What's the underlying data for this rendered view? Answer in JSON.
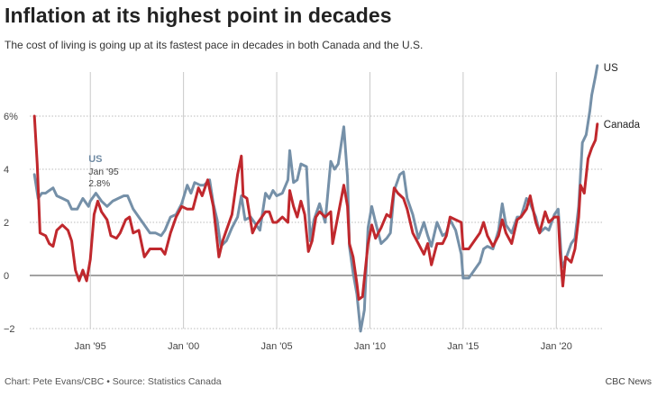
{
  "title": "Inflation at its highest point in decades",
  "subtitle": "The cost of living is going up at its fastest pace in decades in both Canada and the U.S.",
  "footer": {
    "source": "Chart: Pete Evans/CBC • Source: Statistics Canada",
    "brand": "CBC News"
  },
  "colors": {
    "us": "#7590a8",
    "canada": "#c0282d",
    "grid": "#bbbbbb",
    "zero_line": "#444444"
  },
  "annotation": {
    "series": "US",
    "date": "Jan '95",
    "value": "2.8%"
  },
  "chart_data": {
    "type": "line",
    "title": "Inflation at its highest point in decades",
    "subtitle": "The cost of living is going up at its fastest pace in decades in both Canada and the U.S.",
    "xlabel": "",
    "ylabel": "",
    "xlim": [
      1991.75,
      2022.5
    ],
    "ylim": [
      -2,
      8
    ],
    "grid": true,
    "legend": "end-of-line labels",
    "x_ticks": [
      {
        "x": 1995,
        "label": "Jan '95"
      },
      {
        "x": 2000,
        "label": "Jan '00"
      },
      {
        "x": 2005,
        "label": "Jan '05"
      },
      {
        "x": 2010,
        "label": "Jan '10"
      },
      {
        "x": 2015,
        "label": "Jan '15"
      },
      {
        "x": 2020,
        "label": "Jan '20"
      }
    ],
    "y_ticks": [
      {
        "y": 6,
        "label": "6%"
      },
      {
        "y": 4,
        "label": "4"
      },
      {
        "y": 2,
        "label": "2"
      },
      {
        "y": 0,
        "label": "0"
      },
      {
        "y": -2,
        "label": "−2"
      }
    ],
    "series": [
      {
        "name": "US",
        "color": "#7590a8",
        "points": [
          [
            1992.0,
            3.8
          ],
          [
            1992.2,
            2.9
          ],
          [
            1992.4,
            3.1
          ],
          [
            1992.6,
            3.1
          ],
          [
            1992.8,
            3.2
          ],
          [
            1993.0,
            3.3
          ],
          [
            1993.2,
            3.0
          ],
          [
            1993.5,
            2.9
          ],
          [
            1993.8,
            2.8
          ],
          [
            1994.0,
            2.5
          ],
          [
            1994.3,
            2.5
          ],
          [
            1994.6,
            2.9
          ],
          [
            1994.9,
            2.6
          ],
          [
            1995.0,
            2.8
          ],
          [
            1995.3,
            3.1
          ],
          [
            1995.6,
            2.8
          ],
          [
            1995.9,
            2.6
          ],
          [
            1996.2,
            2.8
          ],
          [
            1996.5,
            2.9
          ],
          [
            1996.8,
            3.0
          ],
          [
            1997.0,
            3.0
          ],
          [
            1997.3,
            2.5
          ],
          [
            1997.6,
            2.2
          ],
          [
            1997.9,
            1.9
          ],
          [
            1998.2,
            1.6
          ],
          [
            1998.5,
            1.6
          ],
          [
            1998.8,
            1.5
          ],
          [
            1999.0,
            1.7
          ],
          [
            1999.3,
            2.2
          ],
          [
            1999.6,
            2.3
          ],
          [
            1999.9,
            2.7
          ],
          [
            2000.2,
            3.4
          ],
          [
            2000.4,
            3.1
          ],
          [
            2000.6,
            3.5
          ],
          [
            2000.9,
            3.4
          ],
          [
            2001.1,
            3.4
          ],
          [
            2001.4,
            3.6
          ],
          [
            2001.6,
            2.7
          ],
          [
            2001.8,
            2.1
          ],
          [
            2002.0,
            1.1
          ],
          [
            2002.3,
            1.3
          ],
          [
            2002.6,
            1.8
          ],
          [
            2002.9,
            2.2
          ],
          [
            2003.1,
            3.0
          ],
          [
            2003.3,
            2.1
          ],
          [
            2003.6,
            2.2
          ],
          [
            2003.9,
            1.9
          ],
          [
            2004.1,
            1.7
          ],
          [
            2004.4,
            3.1
          ],
          [
            2004.6,
            2.9
          ],
          [
            2004.8,
            3.2
          ],
          [
            2005.0,
            3.0
          ],
          [
            2005.3,
            3.1
          ],
          [
            2005.6,
            3.6
          ],
          [
            2005.7,
            4.7
          ],
          [
            2005.9,
            3.5
          ],
          [
            2006.1,
            3.6
          ],
          [
            2006.3,
            4.2
          ],
          [
            2006.6,
            4.1
          ],
          [
            2006.8,
            1.3
          ],
          [
            2007.0,
            2.1
          ],
          [
            2007.3,
            2.7
          ],
          [
            2007.6,
            2.0
          ],
          [
            2007.9,
            4.3
          ],
          [
            2008.1,
            4.0
          ],
          [
            2008.3,
            4.2
          ],
          [
            2008.6,
            5.6
          ],
          [
            2008.8,
            3.7
          ],
          [
            2008.9,
            1.1
          ],
          [
            2009.1,
            0.1
          ],
          [
            2009.3,
            -0.7
          ],
          [
            2009.5,
            -2.1
          ],
          [
            2009.7,
            -1.3
          ],
          [
            2009.9,
            1.8
          ],
          [
            2010.1,
            2.6
          ],
          [
            2010.3,
            2.0
          ],
          [
            2010.6,
            1.2
          ],
          [
            2010.9,
            1.4
          ],
          [
            2011.1,
            1.6
          ],
          [
            2011.3,
            3.2
          ],
          [
            2011.6,
            3.8
          ],
          [
            2011.8,
            3.9
          ],
          [
            2012.0,
            2.9
          ],
          [
            2012.3,
            2.3
          ],
          [
            2012.6,
            1.4
          ],
          [
            2012.9,
            2.0
          ],
          [
            2013.1,
            1.5
          ],
          [
            2013.3,
            1.1
          ],
          [
            2013.6,
            2.0
          ],
          [
            2013.9,
            1.5
          ],
          [
            2014.1,
            1.6
          ],
          [
            2014.3,
            2.1
          ],
          [
            2014.6,
            1.7
          ],
          [
            2014.9,
            0.8
          ],
          [
            2015.0,
            -0.1
          ],
          [
            2015.3,
            -0.1
          ],
          [
            2015.6,
            0.2
          ],
          [
            2015.9,
            0.5
          ],
          [
            2016.1,
            1.0
          ],
          [
            2016.3,
            1.1
          ],
          [
            2016.6,
            1.0
          ],
          [
            2016.9,
            1.7
          ],
          [
            2017.1,
            2.7
          ],
          [
            2017.3,
            1.9
          ],
          [
            2017.6,
            1.6
          ],
          [
            2017.9,
            2.2
          ],
          [
            2018.1,
            2.2
          ],
          [
            2018.4,
            2.9
          ],
          [
            2018.6,
            2.7
          ],
          [
            2018.9,
            2.2
          ],
          [
            2019.1,
            1.6
          ],
          [
            2019.4,
            1.8
          ],
          [
            2019.6,
            1.7
          ],
          [
            2019.9,
            2.3
          ],
          [
            2020.1,
            2.5
          ],
          [
            2020.3,
            0.3
          ],
          [
            2020.5,
            0.6
          ],
          [
            2020.8,
            1.2
          ],
          [
            2021.0,
            1.4
          ],
          [
            2021.2,
            2.6
          ],
          [
            2021.4,
            5.0
          ],
          [
            2021.6,
            5.3
          ],
          [
            2021.8,
            6.2
          ],
          [
            2021.9,
            6.8
          ],
          [
            2022.1,
            7.5
          ],
          [
            2022.2,
            7.9
          ]
        ]
      },
      {
        "name": "Canada",
        "color": "#c0282d",
        "points": [
          [
            1992.0,
            6.0
          ],
          [
            1992.15,
            4.2
          ],
          [
            1992.3,
            1.6
          ],
          [
            1992.6,
            1.5
          ],
          [
            1992.8,
            1.2
          ],
          [
            1993.0,
            1.1
          ],
          [
            1993.2,
            1.7
          ],
          [
            1993.5,
            1.9
          ],
          [
            1993.8,
            1.7
          ],
          [
            1994.0,
            1.3
          ],
          [
            1994.2,
            0.2
          ],
          [
            1994.4,
            -0.2
          ],
          [
            1994.6,
            0.2
          ],
          [
            1994.8,
            -0.2
          ],
          [
            1995.0,
            0.6
          ],
          [
            1995.2,
            2.3
          ],
          [
            1995.4,
            2.8
          ],
          [
            1995.6,
            2.4
          ],
          [
            1995.9,
            2.1
          ],
          [
            1996.1,
            1.5
          ],
          [
            1996.4,
            1.4
          ],
          [
            1996.6,
            1.6
          ],
          [
            1996.9,
            2.1
          ],
          [
            1997.1,
            2.2
          ],
          [
            1997.3,
            1.6
          ],
          [
            1997.6,
            1.7
          ],
          [
            1997.9,
            0.7
          ],
          [
            1998.2,
            1.0
          ],
          [
            1998.5,
            1.0
          ],
          [
            1998.8,
            1.0
          ],
          [
            1999.0,
            0.8
          ],
          [
            1999.3,
            1.6
          ],
          [
            1999.6,
            2.2
          ],
          [
            1999.9,
            2.6
          ],
          [
            2000.2,
            2.5
          ],
          [
            2000.5,
            2.5
          ],
          [
            2000.8,
            3.3
          ],
          [
            2001.0,
            3.0
          ],
          [
            2001.3,
            3.6
          ],
          [
            2001.6,
            2.6
          ],
          [
            2001.9,
            0.7
          ],
          [
            2002.1,
            1.3
          ],
          [
            2002.3,
            1.7
          ],
          [
            2002.6,
            2.3
          ],
          [
            2002.9,
            3.8
          ],
          [
            2003.1,
            4.5
          ],
          [
            2003.2,
            3.0
          ],
          [
            2003.4,
            2.9
          ],
          [
            2003.7,
            1.6
          ],
          [
            2003.9,
            1.9
          ],
          [
            2004.1,
            2.1
          ],
          [
            2004.4,
            2.4
          ],
          [
            2004.6,
            2.4
          ],
          [
            2004.8,
            2.0
          ],
          [
            2005.0,
            2.0
          ],
          [
            2005.3,
            2.2
          ],
          [
            2005.6,
            2.0
          ],
          [
            2005.7,
            3.2
          ],
          [
            2005.9,
            2.6
          ],
          [
            2006.1,
            2.2
          ],
          [
            2006.3,
            2.8
          ],
          [
            2006.5,
            2.3
          ],
          [
            2006.7,
            0.9
          ],
          [
            2006.9,
            1.3
          ],
          [
            2007.1,
            2.2
          ],
          [
            2007.3,
            2.4
          ],
          [
            2007.6,
            2.2
          ],
          [
            2007.9,
            2.4
          ],
          [
            2008.0,
            1.2
          ],
          [
            2008.3,
            2.3
          ],
          [
            2008.6,
            3.4
          ],
          [
            2008.8,
            2.6
          ],
          [
            2008.9,
            1.2
          ],
          [
            2009.1,
            0.7
          ],
          [
            2009.3,
            -0.3
          ],
          [
            2009.4,
            -0.9
          ],
          [
            2009.6,
            -0.8
          ],
          [
            2009.9,
            1.2
          ],
          [
            2010.1,
            1.9
          ],
          [
            2010.3,
            1.4
          ],
          [
            2010.6,
            1.8
          ],
          [
            2010.9,
            2.3
          ],
          [
            2011.1,
            2.2
          ],
          [
            2011.3,
            3.3
          ],
          [
            2011.5,
            3.1
          ],
          [
            2011.8,
            2.9
          ],
          [
            2012.0,
            2.5
          ],
          [
            2012.3,
            1.6
          ],
          [
            2012.6,
            1.2
          ],
          [
            2012.9,
            0.8
          ],
          [
            2013.1,
            1.2
          ],
          [
            2013.3,
            0.4
          ],
          [
            2013.6,
            1.2
          ],
          [
            2013.9,
            1.2
          ],
          [
            2014.1,
            1.5
          ],
          [
            2014.3,
            2.2
          ],
          [
            2014.6,
            2.1
          ],
          [
            2014.9,
            2.0
          ],
          [
            2015.0,
            1.0
          ],
          [
            2015.3,
            1.0
          ],
          [
            2015.6,
            1.3
          ],
          [
            2015.9,
            1.6
          ],
          [
            2016.1,
            2.0
          ],
          [
            2016.3,
            1.5
          ],
          [
            2016.6,
            1.1
          ],
          [
            2016.9,
            1.5
          ],
          [
            2017.1,
            2.1
          ],
          [
            2017.3,
            1.6
          ],
          [
            2017.6,
            1.2
          ],
          [
            2017.9,
            2.1
          ],
          [
            2018.1,
            2.2
          ],
          [
            2018.4,
            2.5
          ],
          [
            2018.6,
            3.0
          ],
          [
            2018.9,
            2.0
          ],
          [
            2019.1,
            1.6
          ],
          [
            2019.4,
            2.4
          ],
          [
            2019.6,
            2.0
          ],
          [
            2019.9,
            2.2
          ],
          [
            2020.1,
            2.2
          ],
          [
            2020.2,
            0.9
          ],
          [
            2020.35,
            -0.4
          ],
          [
            2020.5,
            0.7
          ],
          [
            2020.8,
            0.5
          ],
          [
            2021.0,
            1.0
          ],
          [
            2021.2,
            2.2
          ],
          [
            2021.3,
            3.4
          ],
          [
            2021.5,
            3.1
          ],
          [
            2021.7,
            4.4
          ],
          [
            2021.9,
            4.8
          ],
          [
            2022.1,
            5.1
          ],
          [
            2022.2,
            5.7
          ]
        ]
      }
    ]
  }
}
